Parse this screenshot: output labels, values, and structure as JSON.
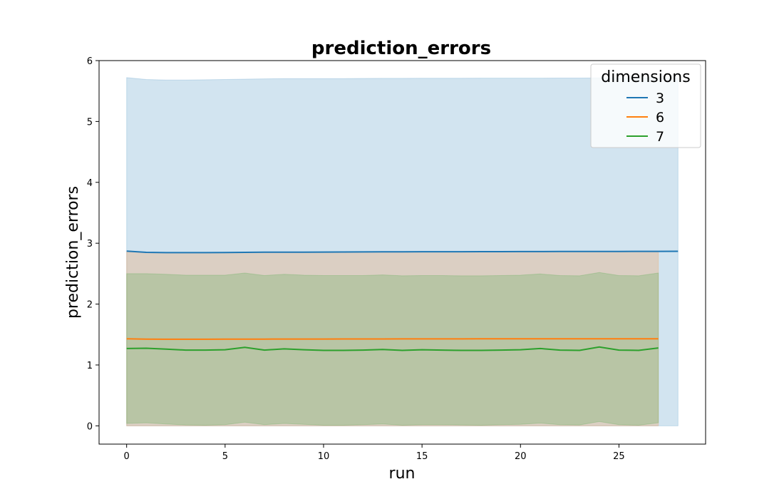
{
  "chart_data": {
    "type": "line",
    "title": "prediction_errors",
    "xlabel": "run",
    "ylabel": "prediction_errors",
    "xlim": [
      -1.4,
      29.4
    ],
    "ylim": [
      -0.3,
      6.0
    ],
    "xticks": [
      0,
      5,
      10,
      15,
      20,
      25
    ],
    "yticks": [
      0,
      1,
      2,
      3,
      4,
      5,
      6
    ],
    "grid": false,
    "legend": {
      "title": "dimensions",
      "placement": "top-right"
    },
    "series": [
      {
        "name": "3",
        "color": "#1f77b4",
        "x": [
          0,
          1,
          2,
          3,
          4,
          5,
          6,
          7,
          8,
          9,
          10,
          11,
          12,
          13,
          14,
          15,
          16,
          17,
          18,
          19,
          20,
          21,
          22,
          23,
          24,
          25,
          26,
          27,
          28
        ],
        "y": [
          2.87,
          2.85,
          2.845,
          2.845,
          2.845,
          2.847,
          2.85,
          2.852,
          2.853,
          2.854,
          2.855,
          2.856,
          2.857,
          2.858,
          2.859,
          2.86,
          2.86,
          2.861,
          2.862,
          2.862,
          2.863,
          2.863,
          2.864,
          2.864,
          2.865,
          2.865,
          2.866,
          2.866,
          2.867
        ],
        "upper": [
          5.72,
          5.69,
          5.68,
          5.68,
          5.685,
          5.69,
          5.695,
          5.7,
          5.705,
          5.705,
          5.705,
          5.705,
          5.707,
          5.708,
          5.708,
          5.71,
          5.71,
          5.71,
          5.712,
          5.712,
          5.712,
          5.712,
          5.713,
          5.713,
          5.714,
          5.714,
          5.715,
          5.715,
          5.716
        ],
        "lower": [
          0,
          0,
          0,
          0,
          0,
          0,
          0,
          0,
          0,
          0,
          0,
          0,
          0,
          0,
          0,
          0,
          0,
          0,
          0,
          0,
          0,
          0,
          0,
          0,
          0,
          0,
          0,
          0,
          0
        ]
      },
      {
        "name": "6",
        "color": "#ff7f0e",
        "x": [
          0,
          1,
          2,
          3,
          4,
          5,
          6,
          7,
          8,
          9,
          10,
          11,
          12,
          13,
          14,
          15,
          16,
          17,
          18,
          19,
          20,
          21,
          22,
          23,
          24,
          25,
          26,
          27
        ],
        "y": [
          1.43,
          1.425,
          1.422,
          1.422,
          1.423,
          1.424,
          1.425,
          1.425,
          1.426,
          1.426,
          1.426,
          1.427,
          1.427,
          1.427,
          1.428,
          1.428,
          1.428,
          1.428,
          1.429,
          1.429,
          1.429,
          1.43,
          1.43,
          1.43,
          1.43,
          1.431,
          1.431,
          1.431
        ],
        "upper": [
          2.86,
          2.85,
          2.845,
          2.845,
          2.846,
          2.848,
          2.85,
          2.851,
          2.852,
          2.853,
          2.854,
          2.855,
          2.856,
          2.857,
          2.857,
          2.858,
          2.858,
          2.859,
          2.86,
          2.86,
          2.861,
          2.861,
          2.862,
          2.862,
          2.862,
          2.863,
          2.863,
          2.863
        ],
        "lower": [
          0,
          0,
          0,
          0,
          0,
          0,
          0,
          0,
          0,
          0,
          0,
          0,
          0,
          0,
          0,
          0,
          0,
          0,
          0,
          0,
          0,
          0,
          0,
          0,
          0,
          0,
          0,
          0
        ]
      },
      {
        "name": "7",
        "color": "#2ca02c",
        "x": [
          0,
          1,
          2,
          3,
          4,
          5,
          6,
          7,
          8,
          9,
          10,
          11,
          12,
          13,
          14,
          15,
          16,
          17,
          18,
          19,
          20,
          21,
          22,
          23,
          24,
          25,
          26,
          27
        ],
        "y": [
          1.27,
          1.275,
          1.26,
          1.245,
          1.245,
          1.25,
          1.29,
          1.245,
          1.265,
          1.25,
          1.24,
          1.24,
          1.245,
          1.255,
          1.24,
          1.25,
          1.245,
          1.24,
          1.24,
          1.245,
          1.25,
          1.27,
          1.245,
          1.24,
          1.295,
          1.245,
          1.24,
          1.28
        ],
        "upper": [
          2.5,
          2.5,
          2.49,
          2.475,
          2.475,
          2.475,
          2.51,
          2.47,
          2.49,
          2.475,
          2.47,
          2.47,
          2.47,
          2.48,
          2.465,
          2.47,
          2.47,
          2.465,
          2.465,
          2.47,
          2.475,
          2.495,
          2.47,
          2.465,
          2.52,
          2.47,
          2.465,
          2.51
        ],
        "lower": [
          0.04,
          0.05,
          0.03,
          0.015,
          0.01,
          0.02,
          0.06,
          0.02,
          0.04,
          0.025,
          0.01,
          0.01,
          0.02,
          0.03,
          0.01,
          0.02,
          0.02,
          0.015,
          0.01,
          0.02,
          0.025,
          0.045,
          0.02,
          0.015,
          0.07,
          0.02,
          0.01,
          0.05
        ]
      }
    ]
  }
}
